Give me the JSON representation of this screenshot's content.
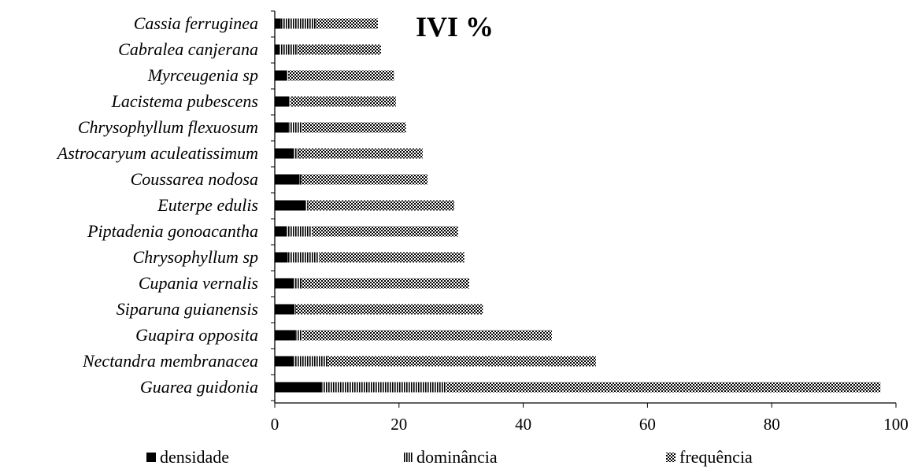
{
  "chart_data": {
    "type": "bar",
    "orientation": "horizontal",
    "stacked": true,
    "title": "IVI %",
    "xlabel": "",
    "ylabel": "",
    "xlim": [
      0,
      100
    ],
    "xticks": [
      0,
      20,
      40,
      60,
      80,
      100
    ],
    "grid": false,
    "legend_position": "bottom",
    "categories": [
      "Cassia ferruginea",
      "Cabralea canjerana",
      "Myrceugenia sp",
      "Lacistema pubescens",
      "Chrysophyllum flexuosum",
      "Astrocaryum aculeatissimum",
      "Coussarea nodosa",
      "Euterpe edulis",
      "Piptadenia gonoacantha",
      "Chrysophyllum sp",
      "Cupania vernalis",
      "Siparuna guianensis",
      "Guapira opposita",
      "Nectandra membranacea",
      "Guarea guidonia"
    ],
    "series": [
      {
        "name": "densidade",
        "color": "#000000",
        "pattern": "solid",
        "values": [
          1,
          0.8,
          2,
          2.3,
          2.2,
          3,
          4,
          5,
          1.8,
          2.1,
          3,
          3.2,
          3.4,
          3,
          7.5
        ]
      },
      {
        "name": "dominância",
        "color": "#000000",
        "pattern": "vertical-lines",
        "values": [
          5.6,
          2.8,
          0.2,
          0.2,
          2.2,
          0.8,
          0.3,
          0.3,
          4.2,
          5,
          1.3,
          0.2,
          1,
          5.5,
          20.1
        ]
      },
      {
        "name": "frequência",
        "color": "#000000",
        "pattern": "checker",
        "values": [
          10,
          13.5,
          17,
          17,
          16.7,
          20,
          20.3,
          23.6,
          23.5,
          23.4,
          27,
          30.1,
          40.2,
          43.2,
          69.9
        ]
      }
    ]
  }
}
